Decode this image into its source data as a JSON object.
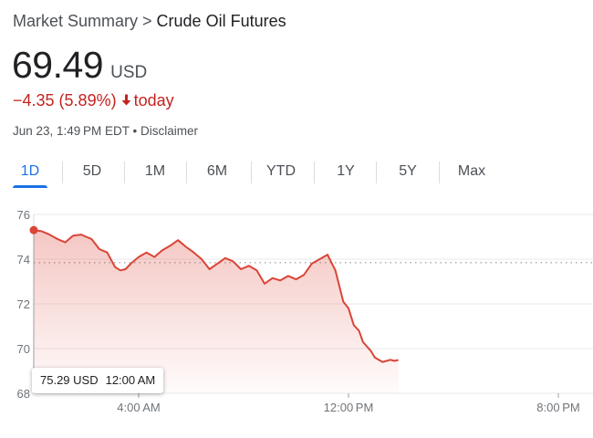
{
  "breadcrumb": {
    "root": "Market Summary",
    "separator": ">",
    "current": "Crude Oil Futures"
  },
  "quote": {
    "price": "69.49",
    "currency": "USD",
    "change": "−4.35 (5.89%)",
    "change_period": "today",
    "timestamp": "Jun 23, 1:49 PM EDT",
    "meta_separator": "•",
    "disclaimer": "Disclaimer"
  },
  "tabs": [
    "1D",
    "5D",
    "1M",
    "6M",
    "YTD",
    "1Y",
    "5Y",
    "Max"
  ],
  "active_tab": "1D",
  "tooltip": {
    "value": "75.29 USD",
    "time": "12:00 AM"
  },
  "colors": {
    "down": "#c5221f",
    "accent": "#1a73e8",
    "line": "#db4437"
  },
  "chart_data": {
    "type": "area",
    "ylim": [
      68,
      76
    ],
    "y_ticks": [
      "76",
      "74",
      "72",
      "70",
      "68"
    ],
    "x_ticks": [
      "4:00 AM",
      "12:00 PM",
      "8:00 PM"
    ],
    "x_tick_hours": [
      4,
      12,
      20
    ],
    "x_range_hours": [
      0,
      21
    ],
    "previous_close": 73.84,
    "grid": true,
    "series": [
      {
        "x_hours": [
          0,
          0.3,
          0.6,
          0.9,
          1.2,
          1.5,
          1.8,
          2.0,
          2.2,
          2.5,
          2.8,
          3.1,
          3.3,
          3.5,
          3.7,
          4.0,
          4.3,
          4.6,
          4.9,
          5.2,
          5.5,
          5.8,
          6.1,
          6.4,
          6.7,
          7.0,
          7.3,
          7.6,
          7.9,
          8.2,
          8.5,
          8.8,
          9.1,
          9.4,
          9.7,
          10.0,
          10.3,
          10.6,
          10.9,
          11.2,
          11.5,
          11.8,
          12.0,
          12.2,
          12.4,
          12.55,
          12.7,
          12.85,
          13.0,
          13.15,
          13.3,
          13.45,
          13.6,
          13.75,
          13.9
        ],
        "values": [
          75.3,
          75.25,
          75.1,
          74.9,
          74.75,
          75.05,
          75.1,
          75.0,
          74.9,
          74.45,
          74.3,
          73.65,
          73.5,
          73.55,
          73.8,
          74.1,
          74.3,
          74.1,
          74.4,
          74.6,
          74.85,
          74.55,
          74.3,
          74.0,
          73.55,
          73.8,
          74.05,
          73.9,
          73.55,
          73.7,
          73.5,
          72.9,
          73.15,
          73.05,
          73.25,
          73.1,
          73.3,
          73.8,
          74.0,
          74.2,
          73.5,
          72.1,
          71.8,
          71.05,
          70.8,
          70.3,
          70.1,
          69.9,
          69.6,
          69.5,
          69.4,
          69.45,
          69.5,
          69.45,
          69.49
        ],
        "color": "#db4437"
      }
    ]
  }
}
